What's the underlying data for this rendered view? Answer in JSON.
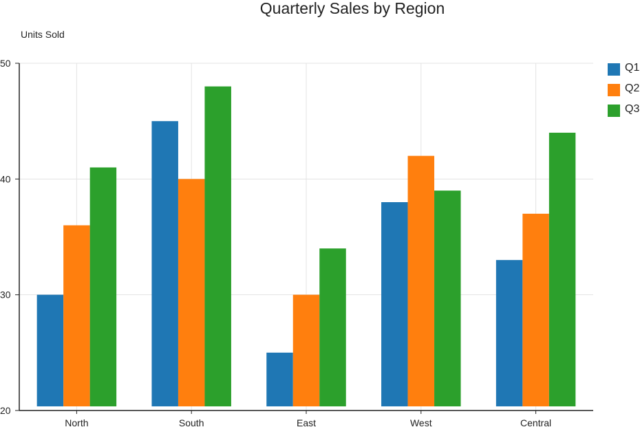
{
  "chart_data": {
    "type": "bar",
    "title": "Quarterly Sales by Region",
    "xlabel": "",
    "ylabel": "Units Sold",
    "categories": [
      "North",
      "South",
      "East",
      "West",
      "Central"
    ],
    "series": [
      {
        "name": "Q1",
        "color": "#1f77b4",
        "values": [
          30,
          45,
          25,
          38,
          33
        ]
      },
      {
        "name": "Q2",
        "color": "#ff7f0e",
        "values": [
          36,
          40,
          30,
          42,
          37
        ]
      },
      {
        "name": "Q3",
        "color": "#2ca02c",
        "values": [
          41,
          48,
          34,
          39,
          44
        ]
      }
    ],
    "ylim": [
      20,
      50
    ],
    "yticks": [
      20,
      30,
      40,
      50
    ],
    "grid": true,
    "legend_position": "top-right"
  }
}
